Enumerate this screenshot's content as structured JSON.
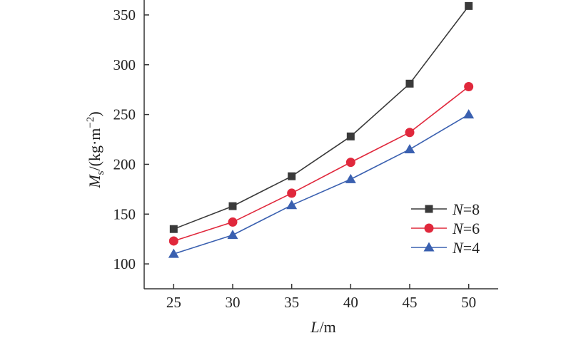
{
  "chart_data": {
    "type": "line",
    "x": [
      25,
      30,
      35,
      40,
      45,
      50
    ],
    "xticks": [
      25,
      30,
      35,
      40,
      45,
      50
    ],
    "yticks": [
      100,
      150,
      200,
      250,
      300,
      350
    ],
    "xlim": [
      22.5,
      52.5
    ],
    "ylim": [
      75,
      365
    ],
    "xlabel": {
      "var": "L",
      "unit": "/m"
    },
    "ylabel": {
      "var": "M",
      "sub": "s",
      "unit": "/(kg·m",
      "sup": "−2",
      "close": ")"
    },
    "legend_position": "right",
    "series": [
      {
        "name": "N=8",
        "name_var": "N",
        "name_rest": "=8",
        "marker": "square",
        "color": "#3a3a3a",
        "values": [
          135,
          158,
          188,
          228,
          281,
          359
        ]
      },
      {
        "name": "N=6",
        "name_var": "N",
        "name_rest": "=6",
        "marker": "circle",
        "color": "#e0283c",
        "values": [
          123,
          142,
          171,
          202,
          232,
          278
        ]
      },
      {
        "name": "N=4",
        "name_var": "N",
        "name_rest": "=4",
        "marker": "triangle",
        "color": "#3a60b0",
        "values": [
          110,
          129,
          159,
          185,
          215,
          250
        ]
      }
    ]
  }
}
